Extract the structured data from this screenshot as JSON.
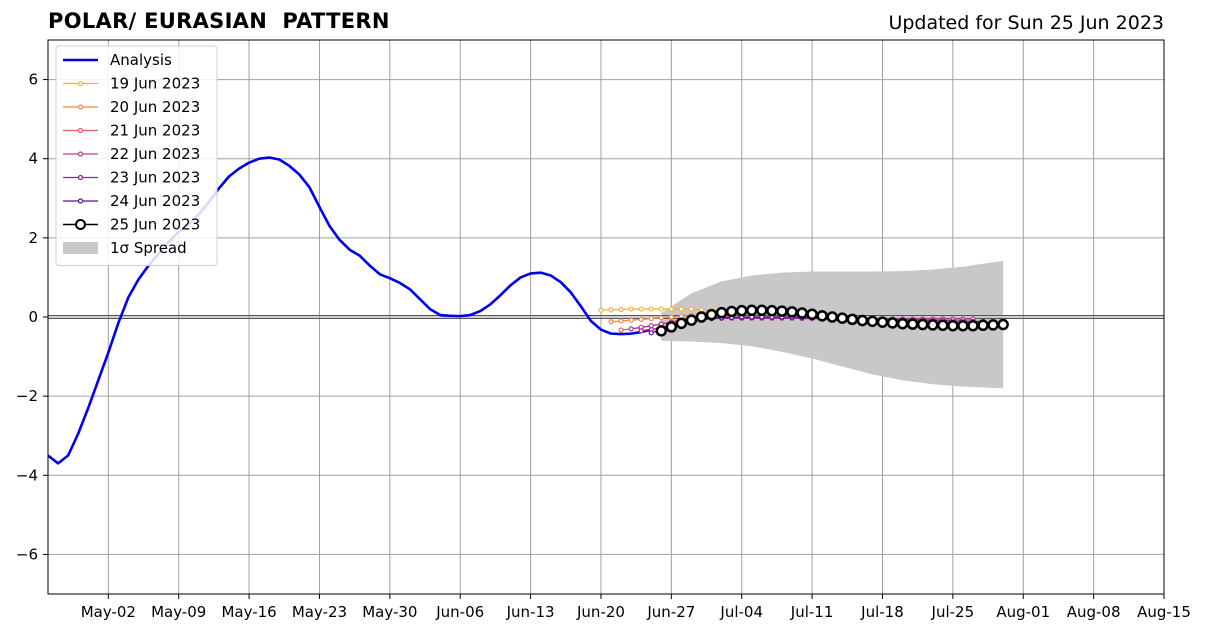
{
  "header": {
    "title": "POLAR/ EURASIAN  PATTERN",
    "updated": "Updated for Sun 25 Jun 2023"
  },
  "chart_data": {
    "type": "line",
    "xlabel": "",
    "ylabel": "",
    "xlim": [
      "2023-04-26",
      "2023-08-15"
    ],
    "ylim": [
      -7,
      7
    ],
    "grid": true,
    "legend_position": "top-left",
    "x_tick_labels": [
      "May-02",
      "May-09",
      "May-16",
      "May-23",
      "May-30",
      "Jun-06",
      "Jun-13",
      "Jun-20",
      "Jun-27",
      "Jul-04",
      "Jul-11",
      "Jul-18",
      "Jul-25",
      "Aug-01",
      "Aug-08",
      "Aug-15"
    ],
    "x_tick_dates": [
      "2023-05-02",
      "2023-05-09",
      "2023-05-16",
      "2023-05-23",
      "2023-05-30",
      "2023-06-06",
      "2023-06-13",
      "2023-06-20",
      "2023-06-27",
      "2023-07-04",
      "2023-07-11",
      "2023-07-18",
      "2023-07-25",
      "2023-08-01",
      "2023-08-08",
      "2023-08-15"
    ],
    "y_ticks": [
      6,
      4,
      2,
      0,
      -2,
      -4,
      -6
    ],
    "y_tick_labels": [
      "6",
      "4",
      "2",
      "0",
      "−2",
      "−4",
      "−6"
    ],
    "series": [
      {
        "name": "Analysis",
        "color": "#0000ee",
        "style": "line",
        "x": [
          "2023-04-26",
          "2023-04-27",
          "2023-04-28",
          "2023-04-29",
          "2023-04-30",
          "2023-05-01",
          "2023-05-02",
          "2023-05-03",
          "2023-05-04",
          "2023-05-05",
          "2023-05-06",
          "2023-05-07",
          "2023-05-08",
          "2023-05-09",
          "2023-05-10",
          "2023-05-11",
          "2023-05-12",
          "2023-05-13",
          "2023-05-14",
          "2023-05-15",
          "2023-05-16",
          "2023-05-17",
          "2023-05-18",
          "2023-05-19",
          "2023-05-20",
          "2023-05-21",
          "2023-05-22",
          "2023-05-23",
          "2023-05-24",
          "2023-05-25",
          "2023-05-26",
          "2023-05-27",
          "2023-05-28",
          "2023-05-29",
          "2023-05-30",
          "2023-05-31",
          "2023-06-01",
          "2023-06-02",
          "2023-06-03",
          "2023-06-04",
          "2023-06-05",
          "2023-06-06",
          "2023-06-07",
          "2023-06-08",
          "2023-06-09",
          "2023-06-10",
          "2023-06-11",
          "2023-06-12",
          "2023-06-13",
          "2023-06-14",
          "2023-06-15",
          "2023-06-16",
          "2023-06-17",
          "2023-06-18",
          "2023-06-19",
          "2023-06-20",
          "2023-06-21",
          "2023-06-22",
          "2023-06-23",
          "2023-06-24",
          "2023-06-25"
        ],
        "y": [
          -3.5,
          -3.7,
          -3.5,
          -2.95,
          -2.3,
          -1.6,
          -0.9,
          -0.15,
          0.5,
          0.95,
          1.3,
          1.6,
          1.9,
          2.15,
          2.35,
          2.6,
          2.9,
          3.25,
          3.55,
          3.75,
          3.9,
          4.0,
          4.03,
          3.98,
          3.82,
          3.6,
          3.28,
          2.78,
          2.3,
          1.95,
          1.7,
          1.55,
          1.3,
          1.08,
          0.98,
          0.86,
          0.7,
          0.45,
          0.2,
          0.05,
          0.03,
          0.02,
          0.05,
          0.15,
          0.32,
          0.55,
          0.8,
          1.0,
          1.1,
          1.12,
          1.05,
          0.88,
          0.62,
          0.27,
          -0.1,
          -0.32,
          -0.42,
          -0.43,
          -0.42,
          -0.38,
          -0.32
        ]
      },
      {
        "name": "19 Jun 2023",
        "color": "#f5b431",
        "style": "dots",
        "x": [
          "2023-06-20",
          "2023-06-21",
          "2023-06-22",
          "2023-06-23",
          "2023-06-24",
          "2023-06-25",
          "2023-06-26",
          "2023-06-27",
          "2023-06-28",
          "2023-06-29",
          "2023-06-30",
          "2023-07-01"
        ],
        "y": [
          0.17,
          0.18,
          0.19,
          0.2,
          0.2,
          0.2,
          0.2,
          0.2,
          0.2,
          0.2,
          0.19,
          0.18
        ]
      },
      {
        "name": "20 Jun 2023",
        "color": "#f08a45",
        "style": "dots",
        "x": [
          "2023-06-21",
          "2023-06-22",
          "2023-06-23",
          "2023-06-24",
          "2023-06-25",
          "2023-06-26",
          "2023-06-27",
          "2023-06-28",
          "2023-06-29",
          "2023-06-30",
          "2023-07-01",
          "2023-07-02"
        ],
        "y": [
          -0.12,
          -0.1,
          -0.08,
          -0.06,
          -0.04,
          -0.02,
          0.0,
          0.02,
          0.04,
          0.05,
          0.05,
          0.04
        ]
      },
      {
        "name": "21 Jun 2023",
        "color": "#e35d6a",
        "style": "dots",
        "x": [
          "2023-06-22",
          "2023-06-23",
          "2023-06-24",
          "2023-06-25",
          "2023-06-26",
          "2023-06-27",
          "2023-06-28",
          "2023-06-29",
          "2023-06-30",
          "2023-07-01",
          "2023-07-02",
          "2023-07-03"
        ],
        "y": [
          -0.33,
          -0.3,
          -0.27,
          -0.22,
          -0.17,
          -0.12,
          -0.08,
          -0.05,
          -0.03,
          -0.01,
          0.0,
          0.01
        ]
      },
      {
        "name": "22 Jun 2023",
        "color": "#c13c8e",
        "style": "dots",
        "x": [
          "2023-06-23",
          "2023-06-24",
          "2023-06-25",
          "2023-06-26",
          "2023-06-27",
          "2023-06-28",
          "2023-06-29",
          "2023-06-30",
          "2023-07-01",
          "2023-07-02",
          "2023-07-03",
          "2023-07-04",
          "2023-07-05",
          "2023-07-06",
          "2023-07-07",
          "2023-07-08",
          "2023-07-09",
          "2023-07-10",
          "2023-07-11",
          "2023-07-12",
          "2023-07-13",
          "2023-07-14",
          "2023-07-15",
          "2023-07-16",
          "2023-07-17",
          "2023-07-18",
          "2023-07-19",
          "2023-07-20",
          "2023-07-21",
          "2023-07-22",
          "2023-07-23",
          "2023-07-24",
          "2023-07-25",
          "2023-07-26",
          "2023-07-27"
        ],
        "y": [
          -0.3,
          -0.26,
          -0.22,
          -0.18,
          -0.14,
          -0.1,
          -0.07,
          -0.05,
          -0.04,
          -0.03,
          -0.03,
          -0.03,
          -0.03,
          -0.03,
          -0.03,
          -0.03,
          -0.03,
          -0.04,
          -0.04,
          -0.05,
          -0.05,
          -0.05,
          -0.05,
          -0.05,
          -0.05,
          -0.05,
          -0.05,
          -0.05,
          -0.05,
          -0.05,
          -0.05,
          -0.05,
          -0.05,
          -0.05,
          -0.05
        ]
      },
      {
        "name": "23 Jun 2023",
        "color": "#9a1fa8",
        "style": "dots",
        "x": [
          "2023-06-24",
          "2023-06-25",
          "2023-06-26",
          "2023-06-27",
          "2023-06-28",
          "2023-06-29",
          "2023-06-30",
          "2023-07-01",
          "2023-07-02",
          "2023-07-03",
          "2023-07-04",
          "2023-07-05",
          "2023-07-06",
          "2023-07-07",
          "2023-07-08",
          "2023-07-09",
          "2023-07-10",
          "2023-07-11",
          "2023-07-12",
          "2023-07-13",
          "2023-07-14",
          "2023-07-15",
          "2023-07-16",
          "2023-07-17",
          "2023-07-18",
          "2023-07-19",
          "2023-07-20",
          "2023-07-21",
          "2023-07-22",
          "2023-07-23",
          "2023-07-24",
          "2023-07-25",
          "2023-07-26",
          "2023-07-27",
          "2023-07-28"
        ],
        "y": [
          -0.35,
          -0.32,
          -0.27,
          -0.2,
          -0.14,
          -0.09,
          -0.06,
          -0.04,
          -0.03,
          -0.02,
          -0.02,
          -0.02,
          -0.02,
          -0.02,
          -0.02,
          -0.02,
          -0.02,
          -0.03,
          -0.03,
          -0.04,
          -0.04,
          -0.05,
          -0.05,
          -0.06,
          -0.06,
          -0.07,
          -0.07,
          -0.08,
          -0.08,
          -0.09,
          -0.09,
          -0.1,
          -0.1,
          -0.11,
          -0.11
        ]
      },
      {
        "name": "24 Jun 2023",
        "color": "#5a128f",
        "style": "dots",
        "x": [
          "2023-06-25",
          "2023-06-26",
          "2023-06-27",
          "2023-06-28",
          "2023-06-29",
          "2023-06-30",
          "2023-07-01",
          "2023-07-02",
          "2023-07-03",
          "2023-07-04",
          "2023-07-05",
          "2023-07-06",
          "2023-07-07",
          "2023-07-08",
          "2023-07-09",
          "2023-07-10",
          "2023-07-11",
          "2023-07-12",
          "2023-07-13",
          "2023-07-14",
          "2023-07-15",
          "2023-07-16",
          "2023-07-17",
          "2023-07-18",
          "2023-07-19",
          "2023-07-20",
          "2023-07-21",
          "2023-07-22",
          "2023-07-23",
          "2023-07-24",
          "2023-07-25",
          "2023-07-26",
          "2023-07-27",
          "2023-07-28",
          "2023-07-29"
        ],
        "y": [
          -0.4,
          -0.33,
          -0.25,
          -0.17,
          -0.11,
          -0.07,
          -0.04,
          -0.02,
          -0.01,
          0.0,
          0.0,
          0.0,
          0.0,
          0.0,
          0.0,
          -0.01,
          -0.02,
          -0.03,
          -0.04,
          -0.05,
          -0.06,
          -0.07,
          -0.08,
          -0.09,
          -0.1,
          -0.11,
          -0.12,
          -0.13,
          -0.14,
          -0.15,
          -0.16,
          -0.17,
          -0.18,
          -0.19,
          -0.2
        ]
      },
      {
        "name": "25 Jun 2023",
        "color": "#000000",
        "style": "circles",
        "x": [
          "2023-06-26",
          "2023-06-27",
          "2023-06-28",
          "2023-06-29",
          "2023-06-30",
          "2023-07-01",
          "2023-07-02",
          "2023-07-03",
          "2023-07-04",
          "2023-07-05",
          "2023-07-06",
          "2023-07-07",
          "2023-07-08",
          "2023-07-09",
          "2023-07-10",
          "2023-07-11",
          "2023-07-12",
          "2023-07-13",
          "2023-07-14",
          "2023-07-15",
          "2023-07-16",
          "2023-07-17",
          "2023-07-18",
          "2023-07-19",
          "2023-07-20",
          "2023-07-21",
          "2023-07-22",
          "2023-07-23",
          "2023-07-24",
          "2023-07-25",
          "2023-07-26",
          "2023-07-27",
          "2023-07-28",
          "2023-07-29",
          "2023-07-30"
        ],
        "y": [
          -0.35,
          -0.25,
          -0.16,
          -0.08,
          0.0,
          0.06,
          0.11,
          0.14,
          0.16,
          0.17,
          0.17,
          0.16,
          0.15,
          0.13,
          0.1,
          0.07,
          0.03,
          0.0,
          -0.03,
          -0.06,
          -0.09,
          -0.11,
          -0.13,
          -0.15,
          -0.17,
          -0.18,
          -0.19,
          -0.2,
          -0.21,
          -0.22,
          -0.22,
          -0.22,
          -0.21,
          -0.2,
          -0.19
        ]
      }
    ],
    "spread": {
      "name": "1σ Spread",
      "color": "#c8c8c8",
      "x": [
        "2023-06-26",
        "2023-06-29",
        "2023-07-02",
        "2023-07-05",
        "2023-07-08",
        "2023-07-11",
        "2023-07-14",
        "2023-07-17",
        "2023-07-20",
        "2023-07-23",
        "2023-07-26",
        "2023-07-30"
      ],
      "upper": [
        0.1,
        0.6,
        0.9,
        1.05,
        1.12,
        1.15,
        1.15,
        1.15,
        1.16,
        1.2,
        1.27,
        1.42
      ],
      "lower": [
        -0.6,
        -0.62,
        -0.66,
        -0.74,
        -0.88,
        -1.05,
        -1.25,
        -1.45,
        -1.6,
        -1.7,
        -1.76,
        -1.8
      ]
    }
  }
}
